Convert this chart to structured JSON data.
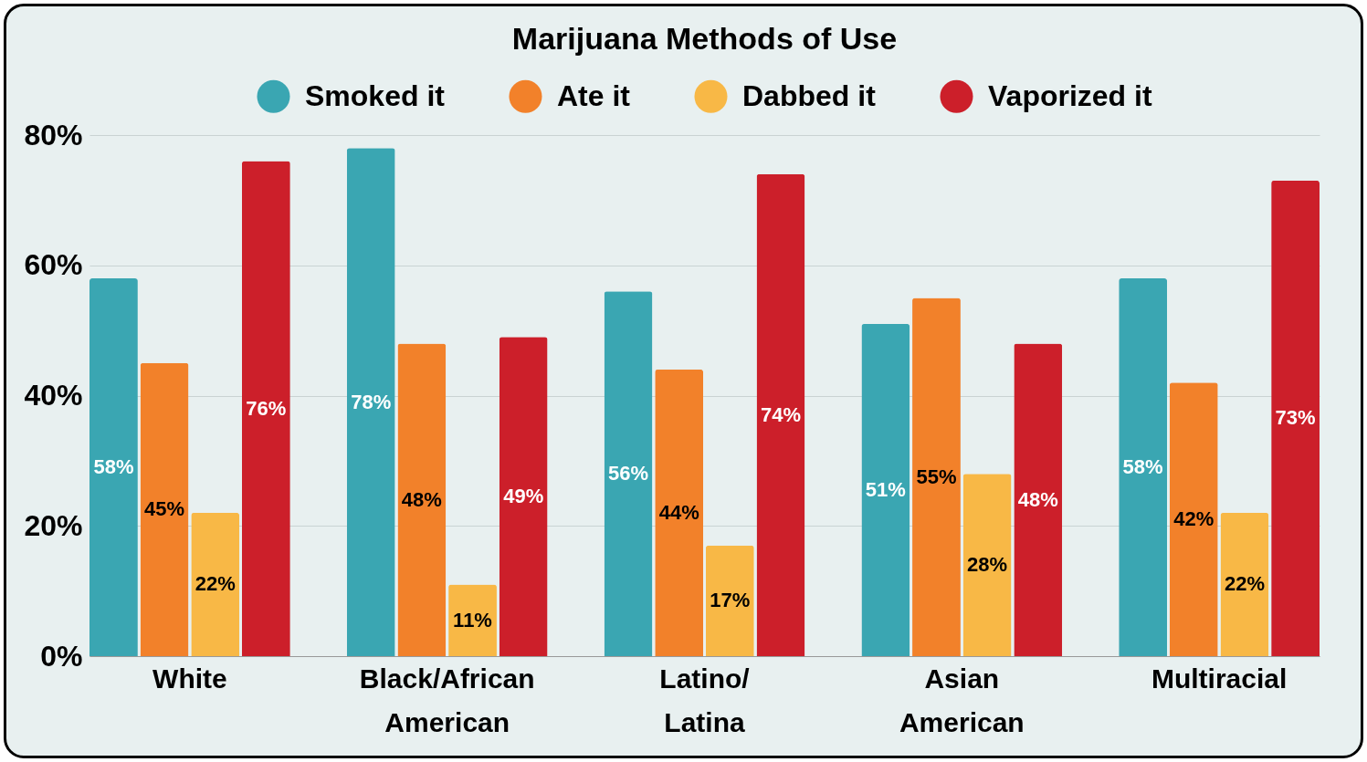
{
  "chart_data": {
    "type": "bar",
    "title": "Marijuana Methods of Use",
    "categories": [
      "White",
      "Black/African American",
      "Latino/ Latina",
      "Asian American",
      "Multiracial"
    ],
    "series": [
      {
        "name": "Smoked it",
        "color": "#3aa6b2",
        "values": [
          58,
          78,
          56,
          51,
          58
        ],
        "value_labels": [
          "58%",
          "78%",
          "56%",
          "51%",
          "58%"
        ]
      },
      {
        "name": "Ate it",
        "color": "#f2812a",
        "values": [
          45,
          48,
          44,
          55,
          42
        ],
        "value_labels": [
          "45%",
          "48%",
          "44%",
          "55%",
          "42%"
        ]
      },
      {
        "name": "Dabbed it",
        "color": "#f8b846",
        "values": [
          22,
          11,
          17,
          28,
          22
        ],
        "value_labels": [
          "22%",
          "11%",
          "17%",
          "28%",
          "22%"
        ]
      },
      {
        "name": "Vaporized it",
        "color": "#cc1f2a",
        "values": [
          76,
          49,
          74,
          48,
          73
        ],
        "value_labels": [
          "76%",
          "49%",
          "74%",
          "48%",
          "73%"
        ]
      }
    ],
    "ylim": [
      0,
      80
    ],
    "yticks": [
      {
        "value": 0,
        "label": "0%"
      },
      {
        "value": 20,
        "label": "20%"
      },
      {
        "value": 40,
        "label": "40%"
      },
      {
        "value": 60,
        "label": "60%"
      },
      {
        "value": 80,
        "label": "80%"
      }
    ],
    "grid": "y",
    "legend": "top"
  }
}
